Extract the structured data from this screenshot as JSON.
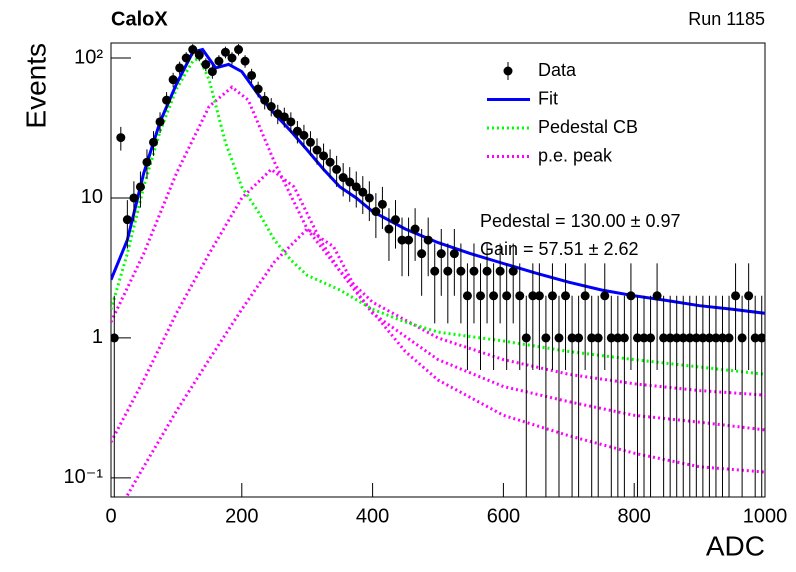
{
  "chart_data": {
    "type": "scatter",
    "title": "CaloX",
    "subtitle": "Run 1185",
    "xlabel": "ADC",
    "ylabel": "Events",
    "xlim": [
      0,
      1000
    ],
    "ylim": [
      0.073,
      128
    ],
    "log_y": true,
    "xticks": [
      0,
      200,
      400,
      600,
      800,
      1000
    ],
    "yticks": [
      {
        "value": 0.1,
        "label": "10⁻¹"
      },
      1,
      10,
      {
        "value": 100,
        "label": "10²"
      }
    ],
    "legend": "upper right",
    "annotations": [
      "Pedestal = 130.00 ± 0.97",
      "Gain = 57.51 ± 2.62"
    ],
    "series": [
      {
        "name": "Data",
        "color": "#000000",
        "style": "points",
        "x": [
          5,
          15,
          25,
          35,
          45,
          55,
          65,
          75,
          85,
          95,
          105,
          115,
          125,
          135,
          145,
          155,
          165,
          175,
          185,
          195,
          205,
          215,
          225,
          235,
          245,
          255,
          265,
          275,
          285,
          295,
          305,
          315,
          325,
          335,
          345,
          355,
          365,
          375,
          385,
          395,
          405,
          415,
          425,
          435,
          445,
          455,
          465,
          475,
          485,
          495,
          505,
          515,
          525,
          535,
          545,
          555,
          565,
          575,
          585,
          595,
          605,
          615,
          625,
          635,
          645,
          655,
          665,
          675,
          685,
          695,
          705,
          715,
          725,
          735,
          745,
          755,
          765,
          775,
          785,
          795,
          805,
          815,
          825,
          835,
          845,
          855,
          865,
          875,
          885,
          895,
          905,
          915,
          925,
          935,
          945,
          955,
          965,
          975,
          985,
          995
        ],
        "values": [
          1,
          27,
          7,
          10,
          12,
          18,
          25,
          35,
          50,
          70,
          85,
          100,
          115,
          105,
          90,
          80,
          95,
          110,
          100,
          115,
          95,
          75,
          60,
          50,
          45,
          40,
          38,
          35,
          30,
          28,
          25,
          22,
          20,
          18,
          16,
          14,
          13,
          12,
          11,
          10,
          8,
          9,
          6,
          7,
          5,
          5,
          6,
          4,
          5,
          3,
          4,
          3,
          4,
          3,
          2,
          3,
          2,
          3,
          2,
          3,
          2,
          3,
          2,
          1,
          2,
          2,
          1,
          2,
          1,
          2,
          1,
          1,
          2,
          1,
          1,
          2,
          1,
          1,
          1,
          2,
          1,
          1,
          1,
          2,
          1,
          1,
          1,
          1,
          1,
          1,
          1,
          1,
          1,
          1,
          1,
          2,
          1,
          2,
          1,
          1
        ],
        "errors": [
          1,
          5.2,
          2.65,
          3.16,
          3.46,
          4.24,
          5,
          5.92,
          7.07,
          8.37,
          9.22,
          10,
          10.72,
          10.25,
          9.49,
          8.94,
          9.75,
          10.49,
          10,
          10.72,
          9.75,
          8.66,
          7.75,
          7.07,
          6.71,
          6.32,
          6.16,
          5.92,
          5.48,
          5.29,
          5,
          4.69,
          4.47,
          4.24,
          4,
          3.74,
          3.61,
          3.46,
          3.32,
          3.16,
          2.83,
          3,
          2.45,
          2.65,
          2.24,
          2.24,
          2.45,
          2,
          2.24,
          1.73,
          2,
          1.73,
          2,
          1.73,
          1.41,
          1.73,
          1.41,
          1.73,
          1.41,
          1.73,
          1.41,
          1.73,
          1.41,
          1,
          1.41,
          1.41,
          1,
          1.41,
          1,
          1.41,
          1,
          1,
          1.41,
          1,
          1,
          1.41,
          1,
          1,
          1,
          1.41,
          1,
          1,
          1,
          1.41,
          1,
          1,
          1,
          1,
          1,
          1,
          1,
          1,
          1,
          1,
          1,
          1.41,
          1,
          1.41,
          1,
          1
        ]
      },
      {
        "name": "Fit",
        "color": "#0000ff",
        "style": "solid",
        "x": [
          0,
          25,
          50,
          75,
          100,
          125,
          140,
          160,
          180,
          200,
          225,
          250,
          275,
          300,
          325,
          350,
          375,
          400,
          450,
          500,
          550,
          600,
          650,
          700,
          750,
          800,
          850,
          900,
          950,
          1000
        ],
        "values": [
          2.6,
          5,
          15,
          35,
          65,
          110,
          115,
          85,
          90,
          80,
          55,
          40,
          30,
          22,
          16,
          12,
          10,
          8,
          6,
          4.8,
          4,
          3.4,
          2.9,
          2.5,
          2.2,
          2,
          1.85,
          1.7,
          1.6,
          1.5
        ]
      },
      {
        "name": "Pedestal CB",
        "color": "#00ff00",
        "style": "dotted",
        "x": [
          0,
          25,
          50,
          75,
          100,
          125,
          135,
          150,
          175,
          200,
          225,
          250,
          275,
          300,
          350,
          400,
          450,
          500,
          600,
          700,
          800,
          900,
          1000
        ],
        "values": [
          1.6,
          4,
          12,
          30,
          60,
          95,
          100,
          70,
          25,
          12,
          8,
          5,
          3.6,
          2.8,
          2.2,
          1.6,
          1.3,
          1.1,
          0.95,
          0.8,
          0.7,
          0.62,
          0.55
        ]
      },
      {
        "name": "p.e. peak",
        "color": "#ff00ff",
        "style": "dotted",
        "x": [
          0,
          50,
          100,
          150,
          185,
          210,
          250,
          300,
          350,
          400,
          500,
          600,
          700,
          800,
          900,
          1000
        ],
        "values": [
          1.3,
          4,
          15,
          45,
          62,
          50,
          18,
          6,
          3,
          1.8,
          1,
          0.7,
          0.55,
          0.47,
          0.42,
          0.39
        ]
      },
      {
        "color": "#ff00ff",
        "style": "dotted",
        "x": [
          0,
          50,
          100,
          150,
          200,
          245,
          280,
          320,
          350,
          400,
          500,
          600,
          700,
          800,
          900,
          1000
        ],
        "values": [
          0.18,
          0.5,
          1.5,
          4,
          10,
          16,
          12,
          5,
          3,
          1.5,
          0.7,
          0.45,
          0.35,
          0.28,
          0.25,
          0.22
        ]
      },
      {
        "color": "#ff00ff",
        "style": "dotted",
        "x": [
          25,
          50,
          100,
          150,
          200,
          250,
          300,
          340,
          380,
          450,
          500,
          600,
          700,
          800,
          900,
          1000
        ],
        "values": [
          0.075,
          0.12,
          0.3,
          0.7,
          1.6,
          3.5,
          6,
          4.5,
          2,
          0.8,
          0.5,
          0.28,
          0.2,
          0.15,
          0.12,
          0.11
        ]
      }
    ]
  }
}
